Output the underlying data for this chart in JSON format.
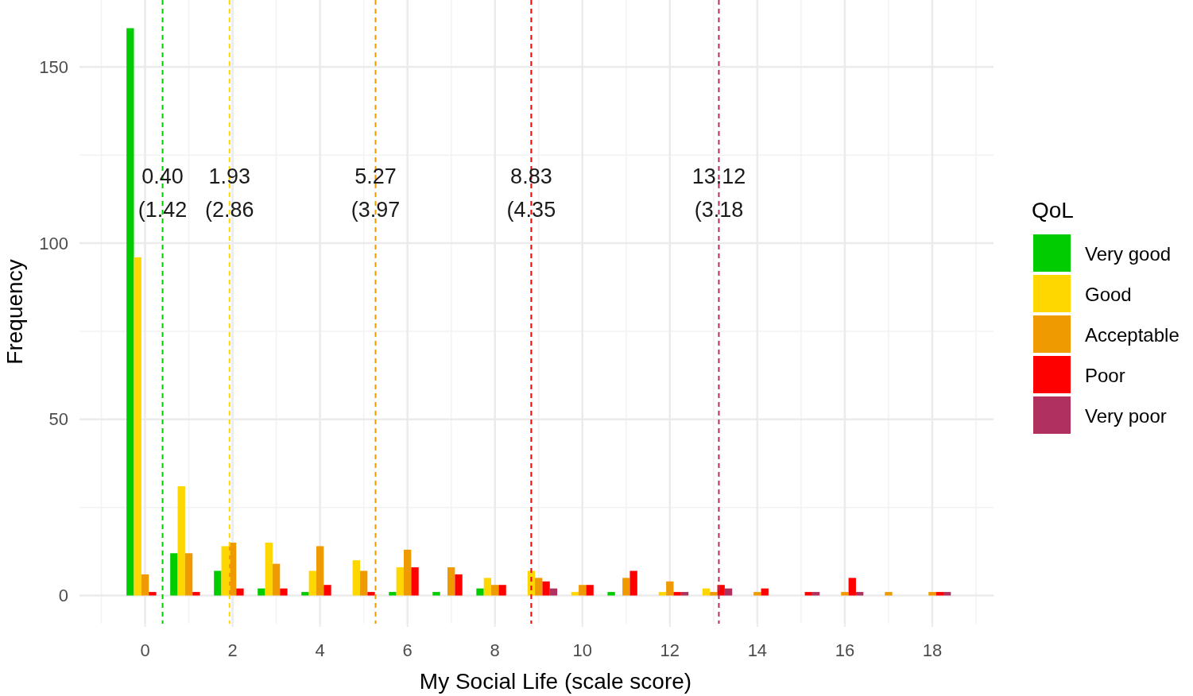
{
  "chart_data": {
    "type": "bar",
    "xlabel": "My Social Life (scale score)",
    "ylabel": "Frequency",
    "legend_title": "QoL",
    "legend": "right",
    "x": [
      0,
      1,
      2,
      3,
      4,
      5,
      6,
      7,
      8,
      9,
      10,
      11,
      12,
      13,
      14,
      15,
      16,
      17,
      18
    ],
    "series": [
      {
        "name": "Very good",
        "color": "#00cc00",
        "values": [
          161,
          12,
          7,
          2,
          1,
          0,
          1,
          1,
          2,
          0,
          0,
          1,
          0,
          0,
          0,
          0,
          0,
          0,
          0
        ]
      },
      {
        "name": "Good",
        "color": "#ffd700",
        "values": [
          96,
          31,
          14,
          15,
          7,
          10,
          8,
          0,
          5,
          7,
          1,
          0,
          1,
          2,
          0,
          0,
          0,
          0,
          0
        ]
      },
      {
        "name": "Acceptable",
        "color": "#ee9a00",
        "values": [
          6,
          12,
          15,
          9,
          14,
          7,
          13,
          8,
          3,
          5,
          3,
          5,
          4,
          1,
          1,
          0,
          1,
          1,
          1
        ]
      },
      {
        "name": "Poor",
        "color": "#ff0000",
        "values": [
          1,
          1,
          2,
          2,
          3,
          1,
          8,
          6,
          3,
          4,
          3,
          7,
          1,
          3,
          2,
          1,
          5,
          0,
          1
        ]
      },
      {
        "name": "Very poor",
        "color": "#b03060",
        "values": [
          0,
          0,
          0,
          0,
          0,
          0,
          0,
          0,
          0,
          2,
          0,
          0,
          1,
          2,
          0,
          1,
          1,
          0,
          1
        ]
      }
    ],
    "xlim": [
      -1.5,
      19.4
    ],
    "ylim": [
      -8,
      169
    ],
    "xticks": [
      0,
      2,
      4,
      6,
      8,
      10,
      12,
      14,
      16,
      18
    ],
    "yticks": [
      0,
      50,
      100,
      150
    ],
    "grid": true,
    "ref_lines": [
      {
        "axis": "x",
        "value": 0.4,
        "color": "#00cc00",
        "line_style": "dashed"
      },
      {
        "axis": "x",
        "value": 1.93,
        "color": "#ffd700",
        "line_style": "dashed"
      },
      {
        "axis": "x",
        "value": 5.27,
        "color": "#ee9a00",
        "line_style": "dashed"
      },
      {
        "axis": "x",
        "value": 8.83,
        "color": "#ff0000",
        "line_style": "dashed"
      },
      {
        "axis": "x",
        "value": 13.12,
        "color": "#b03060",
        "line_style": "dashed"
      }
    ],
    "annotations": [
      {
        "text": "0.40\n(1.42",
        "x": 0.4,
        "y": 119
      },
      {
        "text": "1.93\n(2.86",
        "x": 1.93,
        "y": 119
      },
      {
        "text": "5.27\n(3.97",
        "x": 5.27,
        "y": 119
      },
      {
        "text": "8.83\n(4.35",
        "x": 8.83,
        "y": 119
      },
      {
        "text": "13.12\n(3.18",
        "x": 13.12,
        "y": 119
      }
    ]
  }
}
